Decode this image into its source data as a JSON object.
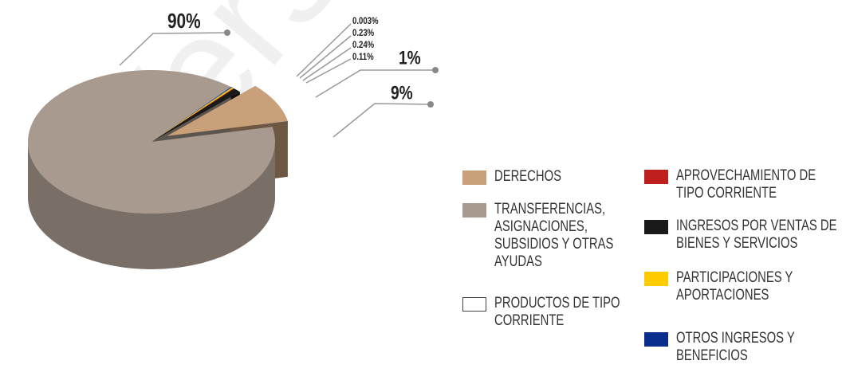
{
  "watermark": "Versión",
  "chart_data": {
    "type": "pie3d",
    "categories": [
      "DERECHOS",
      "TRANSFERENCIAS, ASIGNACIONES, SUBSIDIOS Y OTRAS AYUDAS",
      "PRODUCTOS DE TIPO CORRIENTE",
      "APROVECHAMIENTO DE TIPO CORRIENTE",
      "INGRESOS POR VENTAS DE BIENES Y SERVICIOS",
      "PARTICIPACIONES Y APORTACIONES",
      "OTROS INGRESOS Y BENEFICIOS"
    ],
    "values": [
      9,
      90,
      0.003,
      0.11,
      1,
      0.24,
      0.23
    ],
    "value_labels": [
      "9%",
      "90%",
      "0.003%",
      "0.11%",
      "1%",
      "0.24%",
      "0.23%"
    ],
    "colors": [
      "#c8a07a",
      "#a89a8e",
      "#ffffff",
      "#c0201d",
      "#1a1a1a",
      "#ffcc00",
      "#1f4fa0"
    ],
    "legend_colors": [
      "#c8a07a",
      "#a89a8e",
      "#ffffff",
      "#c0201d",
      "#1a1a1a",
      "#ffcc00",
      "#0a2d8c"
    ],
    "exploded": [
      0
    ]
  }
}
